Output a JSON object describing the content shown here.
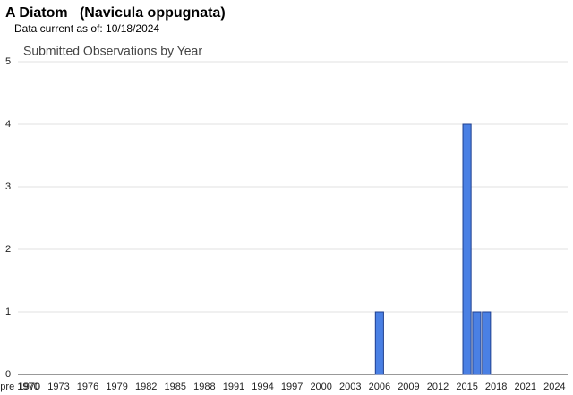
{
  "header": {
    "title": "A Diatom   (Navicula oppugnata)",
    "subtitle": "Data current as of: 10/18/2024"
  },
  "chart_data": {
    "type": "bar",
    "title": "Submitted Observations by Year",
    "categories": [
      "pre 1970",
      "1970",
      null,
      null,
      "1973",
      null,
      null,
      "1976",
      null,
      null,
      "1979",
      null,
      null,
      "1982",
      null,
      null,
      "1985",
      null,
      null,
      "1988",
      null,
      null,
      "1991",
      null,
      null,
      "1994",
      null,
      null,
      "1997",
      null,
      null,
      "2000",
      null,
      null,
      "2003",
      null,
      null,
      "2006",
      null,
      null,
      "2009",
      null,
      null,
      "2012",
      null,
      null,
      "2015",
      null,
      null,
      "2018",
      null,
      null,
      "2021",
      null,
      null,
      "2024"
    ],
    "values": [
      0,
      0,
      0,
      0,
      0,
      0,
      0,
      0,
      0,
      0,
      0,
      0,
      0,
      0,
      0,
      0,
      0,
      0,
      0,
      0,
      0,
      0,
      0,
      0,
      0,
      0,
      0,
      0,
      0,
      0,
      0,
      0,
      0,
      0,
      0,
      0,
      0,
      1,
      0,
      0,
      0,
      0,
      0,
      0,
      0,
      0,
      4,
      1,
      1,
      0,
      0,
      0,
      0,
      0,
      0,
      0
    ],
    "color": "#4a80e4",
    "ylim": [
      0,
      5
    ],
    "yticks": [
      0,
      1,
      2,
      3,
      4,
      5
    ],
    "grid": true
  }
}
